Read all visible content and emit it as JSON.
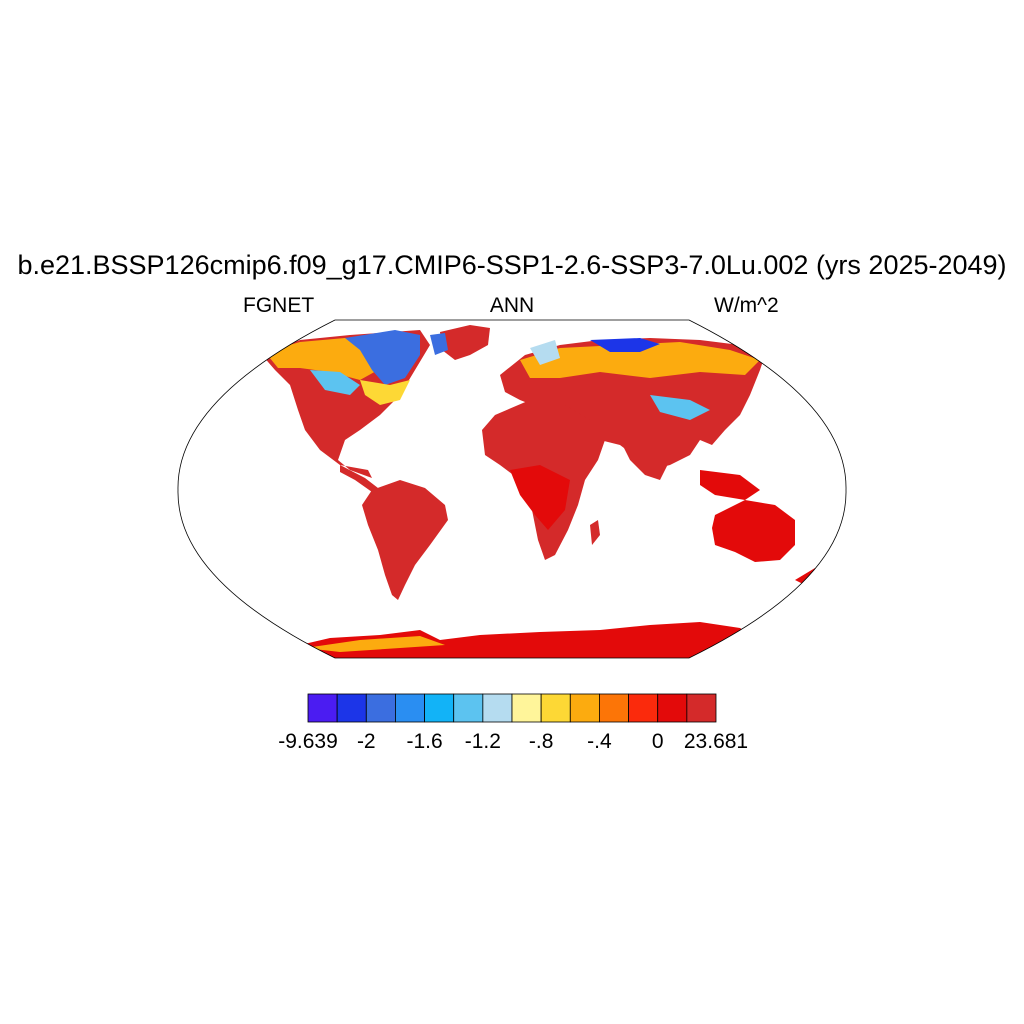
{
  "title": "b.e21.BSSP126cmip6.f09_g17.CMIP6-SSP1-2.6-SSP3-7.0Lu.002 (yrs 2025-2049)",
  "left_label": "FGNET",
  "center_label": "ANN",
  "right_label": "W/m^2",
  "colorbar": {
    "colors": [
      "#4b1cf2",
      "#1c35e8",
      "#3b6ee0",
      "#2a8ef2",
      "#12b3f7",
      "#5cc3f0",
      "#b5dcf0",
      "#fff59a",
      "#fdd835",
      "#fcab0f",
      "#fc7507",
      "#fb2a0c",
      "#e30a0a",
      "#d42a2a"
    ],
    "tick_labels": [
      "-9.639",
      "-2",
      "-1.6",
      "-1.2",
      "-.8",
      "-.4",
      "0",
      "23.681"
    ]
  }
}
